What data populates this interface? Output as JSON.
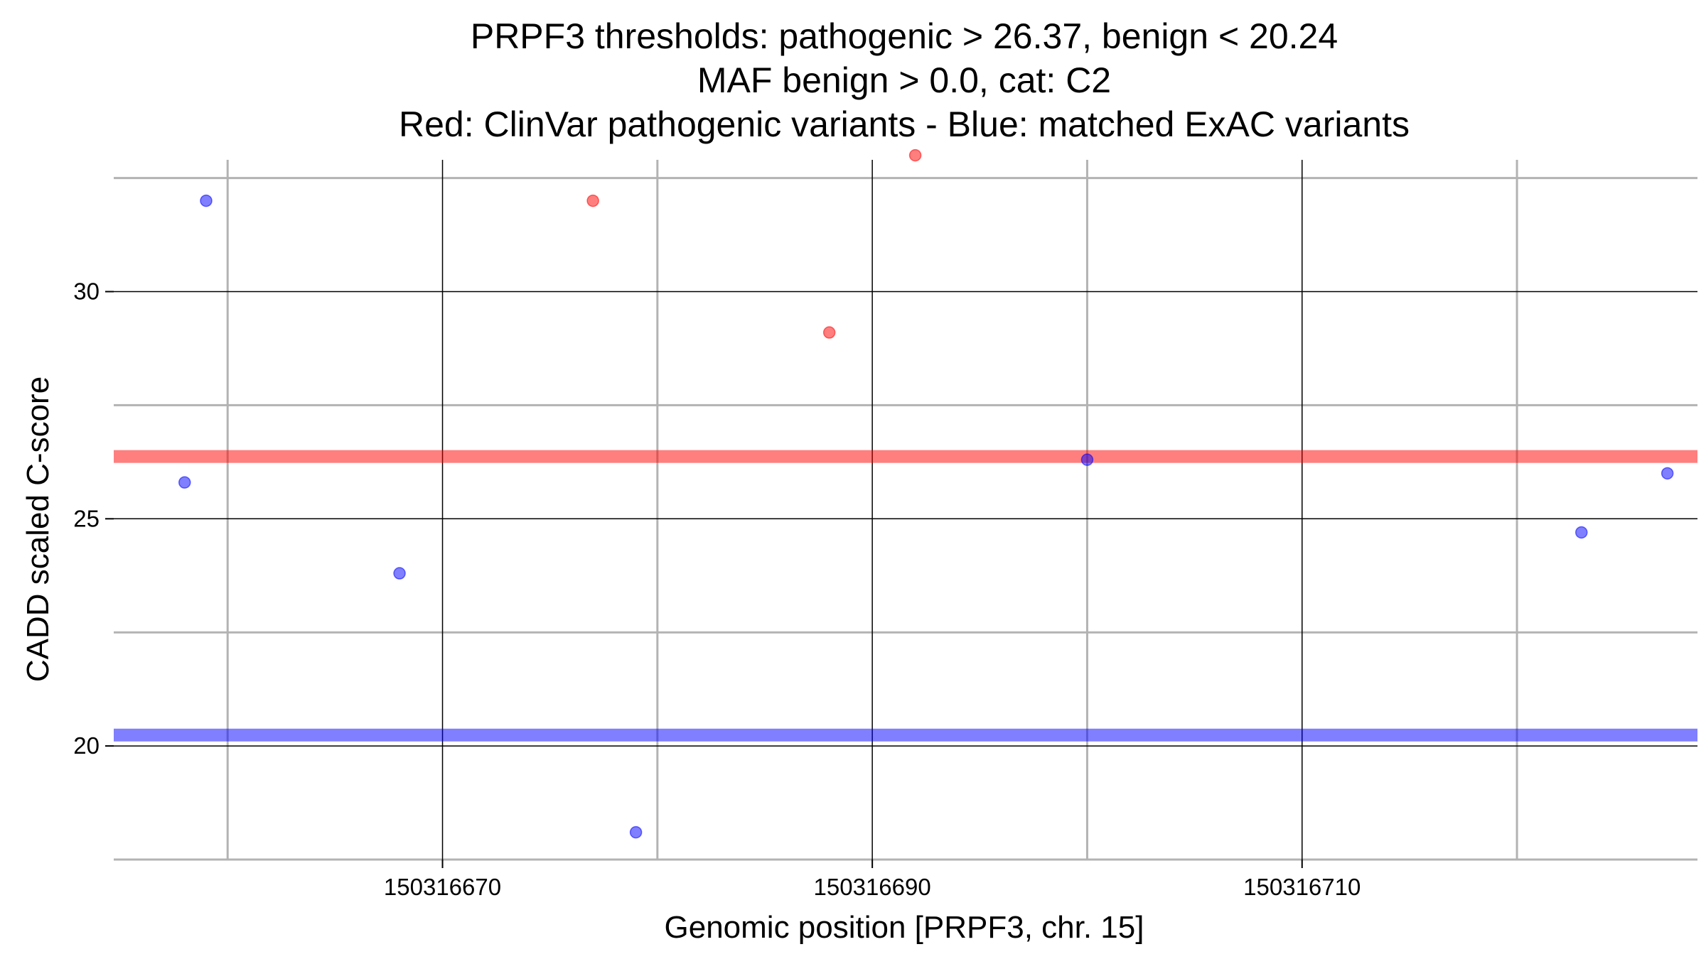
{
  "chart_data": {
    "type": "scatter",
    "title_lines": [
      "PRPF3 thresholds: pathogenic > 26.37, benign < 20.24",
      "MAF benign > 0.0, cat: C2",
      "Red: ClinVar pathogenic variants - Blue: matched ExAC variants"
    ],
    "xlabel": "Genomic position [PRPF3, chr. 15]",
    "ylabel": "CADD scaled C-score",
    "xlim": [
      150316654.7,
      150316728.4
    ],
    "ylim": [
      17.5,
      32.9
    ],
    "x_ticks": [
      150316670,
      150316690,
      150316710
    ],
    "x_tick_labels": [
      "150316670",
      "150316690",
      "150316710"
    ],
    "x_minor_gridlines": [
      150316660,
      150316680,
      150316700,
      150316720
    ],
    "y_ticks": [
      20,
      25,
      30
    ],
    "y_tick_labels": [
      "20",
      "25",
      "30"
    ],
    "y_minor_gridlines": [
      17.5,
      22.5,
      27.5,
      32.5
    ],
    "grid": true,
    "thresholds": [
      {
        "name": "pathogenic",
        "value": 26.37,
        "color": "#ff0000"
      },
      {
        "name": "benign",
        "value": 20.24,
        "color": "#0000ff"
      }
    ],
    "series": [
      {
        "color": "#ff0000",
        "points": [
          {
            "x": 150316677,
            "y": 32.0
          },
          {
            "x": 150316688,
            "y": 29.1
          },
          {
            "x": 150316692,
            "y": 33.0
          }
        ]
      },
      {
        "color": "#0000ff",
        "points": [
          {
            "x": 150316658,
            "y": 25.8
          },
          {
            "x": 150316659,
            "y": 32.0
          },
          {
            "x": 150316668,
            "y": 23.8
          },
          {
            "x": 150316679,
            "y": 18.1
          },
          {
            "x": 150316700,
            "y": 26.3
          },
          {
            "x": 150316723,
            "y": 24.7
          },
          {
            "x": 150316727,
            "y": 26.0
          }
        ]
      }
    ]
  }
}
